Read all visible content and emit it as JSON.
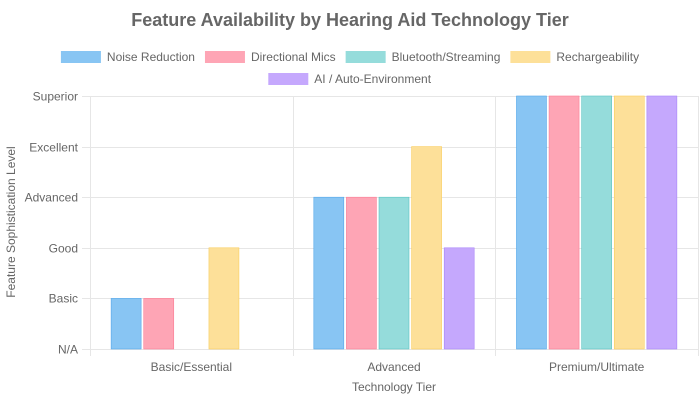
{
  "chart_data": {
    "type": "bar",
    "title": "Feature Availability by Hearing Aid Technology Tier",
    "xlabel": "Technology Tier",
    "ylabel": "Feature Sophistication Level",
    "categories": [
      "Basic/Essential",
      "Advanced",
      "Premium/Ultimate"
    ],
    "y_tick_labels": [
      "N/A",
      "Basic",
      "Good",
      "Advanced",
      "Excellent",
      "Superior"
    ],
    "ylim": [
      0,
      5
    ],
    "grid": true,
    "legend_position": "top",
    "series": [
      {
        "name": "Noise Reduction",
        "values": [
          1,
          3,
          5
        ],
        "color": "#88c5f3",
        "border": "#54a7ea"
      },
      {
        "name": "Directional Mics",
        "values": [
          1,
          3,
          5
        ],
        "color": "#fea5b5",
        "border": "#fb7d95"
      },
      {
        "name": "Bluetooth/Streaming",
        "values": [
          0,
          3,
          5
        ],
        "color": "#95dcdb",
        "border": "#5ac3c1"
      },
      {
        "name": "Rechargeability",
        "values": [
          2,
          4,
          5
        ],
        "color": "#fde099",
        "border": "#f9cd5d"
      },
      {
        "name": "AI / Auto-Environment",
        "values": [
          0,
          2,
          5
        ],
        "color": "#c5a8fd",
        "border": "#a885f8"
      }
    ]
  }
}
